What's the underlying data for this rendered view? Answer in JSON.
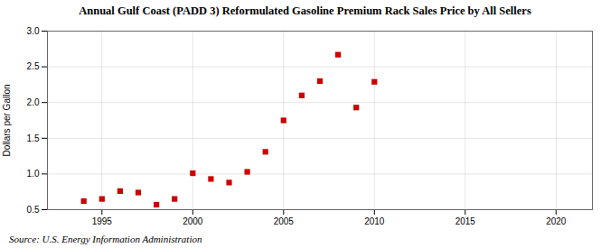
{
  "chart_data": {
    "type": "scatter",
    "title": "Annual Gulf Coast (PADD 3) Reformulated Gasoline Premium Rack Sales Price by All Sellers",
    "ylabel": "Dollars per Gallon",
    "annotations": [
      "Source: U.S. Energy Information Administration"
    ],
    "x": [
      1994,
      1995,
      1996,
      1997,
      1998,
      1999,
      2000,
      2001,
      2002,
      2003,
      2004,
      2005,
      2006,
      2007,
      2008,
      2009,
      2010
    ],
    "values": [
      0.62,
      0.65,
      0.76,
      0.74,
      0.57,
      0.65,
      1.01,
      0.93,
      0.88,
      1.03,
      1.31,
      1.75,
      2.1,
      2.3,
      2.67,
      1.93,
      2.29
    ],
    "color": "#cc0000",
    "marker": "square",
    "xlim": [
      1992,
      2022
    ],
    "xticks": [
      1995,
      2000,
      2005,
      2010,
      2015,
      2020
    ],
    "ylim": [
      0.5,
      3.0
    ],
    "yticks": [
      0.5,
      {
        "value": 1,
        "label": "1.0"
      },
      1.5,
      {
        "value": 2,
        "label": "2.0"
      },
      2.5,
      {
        "value": 3,
        "label": "3.0"
      }
    ],
    "grid": true
  }
}
